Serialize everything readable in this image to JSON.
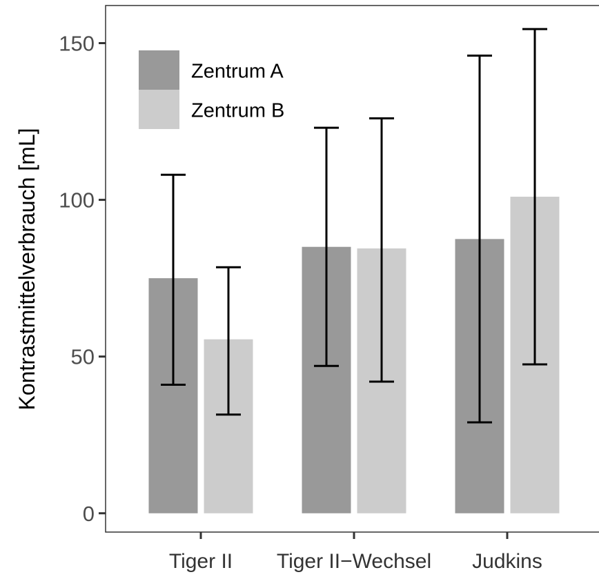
{
  "chart_data": {
    "type": "bar",
    "title": "",
    "xlabel": "",
    "ylabel": "Kontrastmittelverbrauch [mL]",
    "ylim": [
      -6,
      162
    ],
    "yticks": [
      0,
      50,
      100,
      150
    ],
    "categories": [
      "Tiger II",
      "Tiger II−Wechsel",
      "Judkins"
    ],
    "series": [
      {
        "name": "Zentrum A",
        "color": "#999999",
        "values": [
          75,
          85,
          87.5
        ],
        "error_low": [
          41,
          47,
          29
        ],
        "error_high": [
          108,
          123,
          146
        ]
      },
      {
        "name": "Zentrum B",
        "color": "#cccccc",
        "values": [
          55.5,
          84.5,
          101
        ],
        "error_low": [
          31.5,
          42,
          47.5
        ],
        "error_high": [
          78.5,
          126,
          154.5
        ]
      }
    ],
    "legend_position": "top-left",
    "grid": false
  }
}
